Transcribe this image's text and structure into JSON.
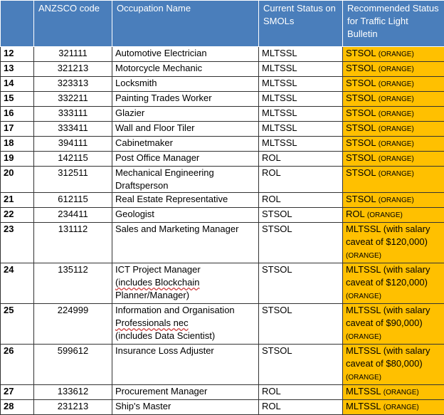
{
  "headers": {
    "num": "",
    "code": "ANZSCO code",
    "occupation": "Occupation Name",
    "current": "Current Status on SMOLs",
    "recommended": "Recommended Status for Traffic Light Bulletin"
  },
  "rows": [
    {
      "num": "12",
      "code": "321111",
      "occ": [
        "Automotive Electrician"
      ],
      "cur": "MLTSSL",
      "rec": [
        "STSOL"
      ],
      "tag": "(ORANGE)"
    },
    {
      "num": "13",
      "code": "321213",
      "occ": [
        "Motorcycle Mechanic"
      ],
      "cur": "MLTSSL",
      "rec": [
        "STSOL"
      ],
      "tag": "(ORANGE)"
    },
    {
      "num": "14",
      "code": "323313",
      "occ": [
        "Locksmith"
      ],
      "cur": "MLTSSL",
      "rec": [
        "STSOL"
      ],
      "tag": "(ORANGE)"
    },
    {
      "num": "15",
      "code": "332211",
      "occ": [
        "Painting Trades Worker"
      ],
      "cur": "MLTSSL",
      "rec": [
        "STSOL"
      ],
      "tag": "(ORANGE)"
    },
    {
      "num": "16",
      "code": "333111",
      "occ": [
        "Glazier"
      ],
      "cur": "MLTSSL",
      "rec": [
        "STSOL"
      ],
      "tag": "(ORANGE)"
    },
    {
      "num": "17",
      "code": "333411",
      "occ": [
        "Wall and Floor Tiler"
      ],
      "cur": "MLTSSL",
      "rec": [
        "STSOL"
      ],
      "tag": "(ORANGE)"
    },
    {
      "num": "18",
      "code": "394111",
      "occ": [
        "Cabinetmaker"
      ],
      "cur": "MLTSSL",
      "rec": [
        "STSOL"
      ],
      "tag": "(ORANGE)"
    },
    {
      "num": "19",
      "code": "142115",
      "occ": [
        "Post Office Manager"
      ],
      "cur": "ROL",
      "rec": [
        "STSOL"
      ],
      "tag": "(ORANGE)"
    },
    {
      "num": "20",
      "code": "312511",
      "occ": [
        "Mechanical Engineering",
        "Draftsperson"
      ],
      "cur": "ROL",
      "rec": [
        "STSOL"
      ],
      "tag": "(ORANGE)"
    },
    {
      "num": "21",
      "code": "612115",
      "occ": [
        "Real Estate Representative"
      ],
      "cur": "ROL",
      "rec": [
        "STSOL"
      ],
      "tag": "(ORANGE)"
    },
    {
      "num": "22",
      "code": "234411",
      "occ": [
        "Geologist"
      ],
      "cur": "STSOL",
      "rec": [
        "ROL"
      ],
      "tag": "(ORANGE)"
    },
    {
      "num": "23",
      "code": "131112",
      "occ": [
        "Sales and Marketing Manager"
      ],
      "cur": "STSOL",
      "rec": [
        "MLTSSL (with salary",
        "caveat of $120,000)"
      ],
      "tag": "(ORANGE)"
    },
    {
      "num": "24",
      "code": "135112",
      "occ": [
        "ICT Project Manager",
        "(includes Blockchain",
        "Planner/Manager)"
      ],
      "cur": "STSOL",
      "rec": [
        "MLTSSL (with salary",
        "caveat of $120,000)"
      ],
      "tag": "(ORANGE)"
    },
    {
      "num": "25",
      "code": "224999",
      "occ": [
        "Information and Organisation",
        "Professionals nec",
        "(includes Data Scientist)"
      ],
      "cur": "STSOL",
      "rec": [
        "MLTSSL (with salary",
        "caveat of $90,000)"
      ],
      "tag": "(ORANGE)"
    },
    {
      "num": "26",
      "code": "599612",
      "occ": [
        "Insurance Loss Adjuster"
      ],
      "cur": "STSOL",
      "rec": [
        "MLTSSL (with salary",
        "caveat of $80,000)"
      ],
      "tag": "(ORANGE)"
    },
    {
      "num": "27",
      "code": "133612",
      "occ": [
        "Procurement Manager"
      ],
      "cur": "ROL",
      "rec": [
        "MLTSSL"
      ],
      "tag": "(ORANGE)"
    },
    {
      "num": "28",
      "code": "231213",
      "occ": [
        "Ship's Master"
      ],
      "cur": "ROL",
      "rec": [
        "MLTSSL"
      ],
      "tag": "(ORANGE)"
    }
  ],
  "colors": {
    "header_bg": "#4a7ebb",
    "highlight": "#ffc000"
  }
}
